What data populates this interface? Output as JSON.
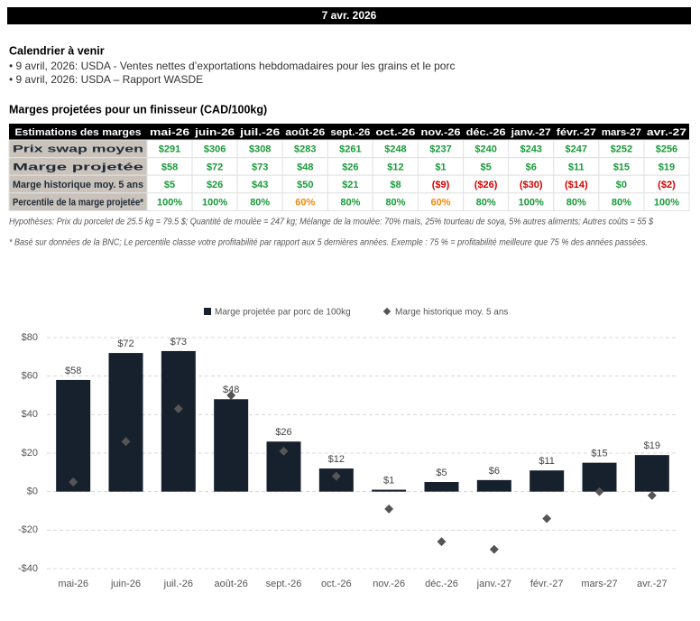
{
  "header": {
    "date": "7 avr. 2026"
  },
  "calendar": {
    "title": "Calendrier à venir",
    "items": [
      "• 9 avril, 2026: USDA - Ventes nettes d’exportations hebdomadaires pour les grains et le porc",
      "• 9 avril, 2026: USDA – Rapport WASDE"
    ]
  },
  "table": {
    "title": "Marges projetées pour un finisseur (CAD/100kg)",
    "columns": [
      "Estimations des marges",
      "mai-26",
      "juin-26",
      "juil.-26",
      "août-26",
      "sept.-26",
      "oct.-26",
      "nov.-26",
      "déc.-26",
      "janv.-27",
      "févr.-27",
      "mars-27",
      "avr.-27"
    ],
    "rows": [
      [
        "Prix swap moyen",
        "$291",
        "$306",
        "$308",
        "$283",
        "$261",
        "$248",
        "$237",
        "$240",
        "$243",
        "$247",
        "$252",
        "$256"
      ],
      [
        "Marge projetée",
        "$58",
        "$72",
        "$73",
        "$48",
        "$26",
        "$12",
        "$1",
        "$5",
        "$6",
        "$11",
        "$15",
        "$19"
      ],
      [
        "Marge historique moy. 5 ans",
        "$5",
        "$26",
        "$43",
        "$50",
        "$21",
        "$8",
        "($9)",
        "($26)",
        "($30)",
        "($14)",
        "$0",
        "($2)"
      ],
      [
        "Percentile de la marge projetée*",
        "100%",
        "100%",
        "80%",
        "60%",
        "80%",
        "80%",
        "60%",
        "80%",
        "100%",
        "80%",
        "80%",
        "100%"
      ]
    ],
    "notes": [
      "Hypothèses: Prix du porcelet de 25.5 kg = 79.5 $; Quantité de moulée = 247 kg; Mélange de la moulée: 70% maïs, 25% tourteau de soya, 5% autres aliments; Autres coûts = 55 $",
      "* Basé sur données de la BNC; Le percentile classe votre profitabilité par rapport aux 5 dernières années. Exemple : 75 % = profitabilité meilleure que 75 % des années passées."
    ]
  },
  "chart_data": {
    "type": "bar",
    "categories": [
      "mai-26",
      "juin-26",
      "juil.-26",
      "août-26",
      "sept.-26",
      "oct.-26",
      "nov.-26",
      "déc.-26",
      "janv.-27",
      "févr.-27",
      "mars-27",
      "avr.-27"
    ],
    "series": [
      {
        "name": "Marge projetée par porc de 100kg",
        "color": "#17212d",
        "values": [
          58,
          72,
          73,
          48,
          26,
          12,
          1,
          5,
          6,
          11,
          15,
          19
        ],
        "value_labels": [
          "$58",
          "$72",
          "$73",
          "$48",
          "$26",
          "$12",
          "$1",
          "$5",
          "$6",
          "$11",
          "$15",
          "$19"
        ]
      },
      {
        "name": "Marge historique moy. 5 ans",
        "type": "scatter",
        "color": "#555555",
        "values": [
          5,
          26,
          43,
          50,
          21,
          8,
          -9,
          -26,
          -30,
          -14,
          0,
          -2
        ]
      }
    ],
    "ylim": [
      -40,
      80
    ],
    "yticks": [
      {
        "value": -40,
        "label": "-$40"
      },
      {
        "value": -20,
        "label": "-$20"
      },
      {
        "value": 0,
        "label": "$0"
      },
      {
        "value": 20,
        "label": "$20"
      },
      {
        "value": 40,
        "label": "$40"
      },
      {
        "value": 60,
        "label": "$60"
      },
      {
        "value": 80,
        "label": "$80"
      }
    ],
    "grid": true
  }
}
